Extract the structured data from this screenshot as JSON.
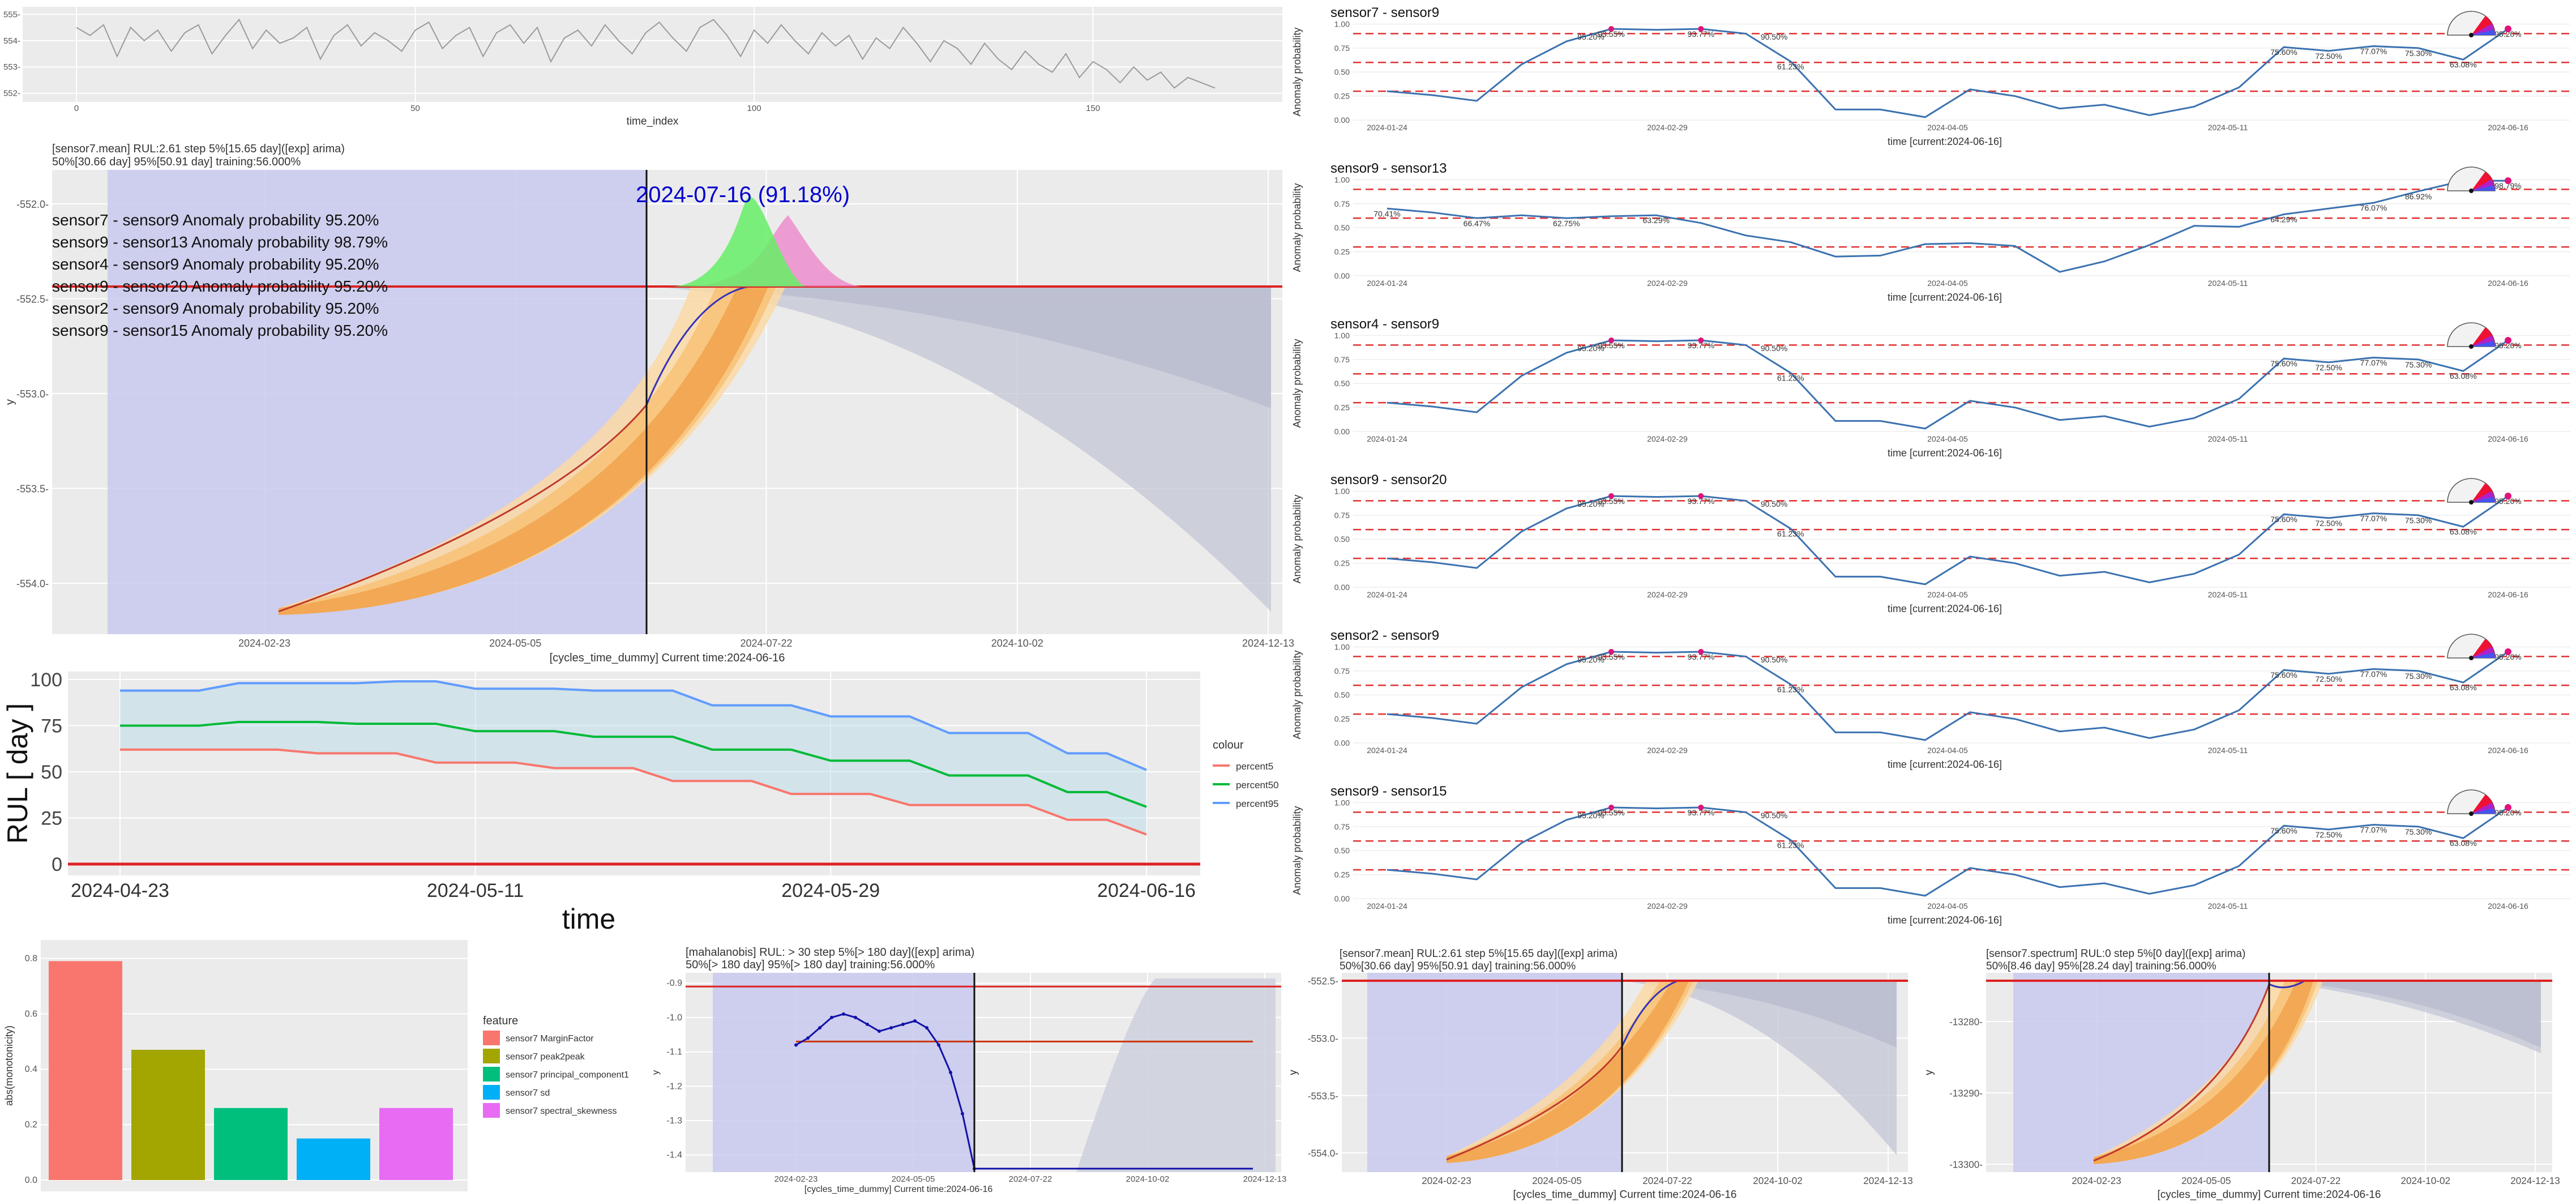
{
  "chart_data": [
    {
      "id": "raw",
      "type": "line",
      "xlabel": "time_index",
      "x_ticks": [
        "0",
        "50",
        "100",
        "150"
      ],
      "y_ticks": [
        "552-",
        "553-",
        "554-",
        "555-"
      ],
      "xlim": [
        0,
        170
      ],
      "ylim": [
        551.8,
        555.2
      ],
      "x": [
        0,
        2,
        4,
        6,
        8,
        10,
        12,
        14,
        16,
        18,
        20,
        22,
        24,
        26,
        28,
        30,
        32,
        34,
        36,
        38,
        40,
        42,
        44,
        46,
        48,
        50,
        52,
        54,
        56,
        58,
        60,
        62,
        64,
        66,
        68,
        70,
        72,
        74,
        76,
        78,
        80,
        82,
        84,
        86,
        88,
        90,
        92,
        94,
        96,
        98,
        100,
        102,
        104,
        106,
        108,
        110,
        112,
        114,
        116,
        118,
        120,
        122,
        124,
        126,
        128,
        130,
        132,
        134,
        136,
        138,
        140,
        142,
        144,
        146,
        148,
        150,
        152,
        154,
        156,
        158,
        160,
        162,
        164,
        166,
        168
      ],
      "values": [
        554.5,
        554.2,
        554.6,
        553.4,
        554.5,
        554.0,
        554.4,
        553.6,
        554.3,
        554.6,
        553.5,
        554.2,
        554.8,
        553.7,
        554.4,
        553.9,
        554.1,
        554.5,
        553.3,
        554.2,
        554.6,
        553.8,
        554.3,
        554.0,
        553.6,
        554.4,
        554.7,
        553.7,
        554.2,
        554.5,
        553.4,
        554.3,
        554.6,
        553.9,
        554.5,
        553.2,
        554.1,
        554.4,
        553.8,
        554.6,
        554.0,
        553.5,
        554.3,
        554.7,
        554.1,
        553.6,
        554.5,
        554.8,
        554.2,
        553.4,
        554.4,
        553.9,
        554.6,
        554.0,
        553.5,
        554.3,
        553.8,
        554.2,
        553.3,
        554.1,
        553.7,
        554.5,
        553.9,
        553.2,
        554.0,
        553.7,
        553.1,
        553.9,
        553.3,
        552.9,
        553.6,
        553.1,
        552.8,
        553.5,
        552.6,
        553.2,
        552.9,
        552.4,
        553.0,
        552.5,
        552.8,
        552.2,
        552.6,
        552.4,
        552.2
      ]
    },
    {
      "id": "main_forecast",
      "type": "line",
      "title_line1": "[sensor7.mean] RUL:2.61 step 5%[15.65 day]([exp] arima)",
      "title_line2": "50%[30.66 day] 95%[50.91 day] training:56.000%",
      "xlabel": "[cycles_time_dummy] Current time:2024-06-16",
      "ylabel": "y",
      "x_ticks": [
        "2024-02-23",
        "2024-05-05",
        "2024-07-22",
        "2024-10-02",
        "2024-12-13"
      ],
      "y_ticks": [
        "-552.0-",
        "-552.5-",
        "-553.0-",
        "-553.5-",
        "-554.0-"
      ],
      "ylim": [
        -554.3,
        -551.9
      ],
      "threshold": -552.51,
      "event_label": "2024-07-16 (91.18%)",
      "annotations": [
        "sensor7 - sensor9 Anomaly probability 95.20%",
        "sensor9 - sensor13 Anomaly probability 98.79%",
        "sensor4 - sensor9 Anomaly probability 95.20%",
        "sensor9 - sensor20 Anomaly probability 95.20%",
        "sensor2 - sensor9 Anomaly probability 95.20%",
        "sensor9 - sensor15 Anomaly probability 95.20%"
      ],
      "colors": {
        "accent": "#0000cc",
        "threshold": "#cc0000",
        "obs": "#cc3300",
        "fit": "#3333bb",
        "train_band": "#c8c8f0",
        "density_green": "#66ee66",
        "density_pink": "#ee88cc"
      }
    },
    {
      "id": "rul",
      "type": "line",
      "ylabel": "RUL [ day ]",
      "xlabel": "time",
      "x_ticks": [
        "2024-04-23",
        "2024-05-11",
        "2024-05-29",
        "2024-06-16"
      ],
      "y_ticks": [
        "0",
        "25",
        "50",
        "75",
        "100"
      ],
      "ylim": [
        0,
        100
      ],
      "legend_title": "colour",
      "series": [
        {
          "name": "percent5",
          "color": "#f8766d",
          "values": [
            62,
            62,
            62,
            62,
            62,
            60,
            60,
            60,
            55,
            55,
            55,
            52,
            52,
            52,
            45,
            45,
            45,
            38,
            38,
            38,
            32,
            32,
            32,
            32,
            24,
            24,
            16
          ]
        },
        {
          "name": "percent50",
          "color": "#00ba38",
          "values": [
            75,
            75,
            75,
            77,
            77,
            77,
            76,
            76,
            76,
            72,
            72,
            72,
            69,
            69,
            69,
            62,
            62,
            62,
            56,
            56,
            56,
            48,
            48,
            48,
            39,
            39,
            31
          ]
        },
        {
          "name": "percent95",
          "color": "#619cff",
          "values": [
            94,
            94,
            94,
            98,
            98,
            98,
            98,
            99,
            99,
            95,
            95,
            95,
            94,
            94,
            94,
            86,
            86,
            86,
            80,
            80,
            80,
            71,
            71,
            71,
            60,
            60,
            51
          ]
        }
      ]
    },
    {
      "id": "monotonicity",
      "type": "bar",
      "ylabel": "abs(monotonicity)",
      "y_ticks": [
        "0.0",
        "0.2",
        "0.4",
        "0.6",
        "0.8"
      ],
      "ylim": [
        0,
        0.85
      ],
      "legend_title": "feature",
      "categories": [
        "sensor7 MarginFactor",
        "sensor7 peak2peak",
        "sensor7 principal_component1",
        "sensor7 sd",
        "sensor7 spectral_skewness"
      ],
      "values": [
        0.79,
        0.47,
        0.26,
        0.15,
        0.26
      ],
      "colors": [
        "#f8766d",
        "#a3a500",
        "#00bf7d",
        "#00b0f6",
        "#e76bf3"
      ]
    },
    {
      "id": "anomaly_panels",
      "type": "line",
      "ylabel": "Anomaly probability",
      "xlabel": "time [current:2024-06-16]",
      "x_ticks": [
        "2024-01-24",
        "2024-02-29",
        "2024-04-05",
        "2024-05-11",
        "2024-06-16"
      ],
      "y_ticks": [
        "0.00",
        "0.25",
        "0.50",
        "0.75",
        "1.00"
      ],
      "ylim": [
        0,
        1.05
      ],
      "thresholds": [
        0.3,
        0.6,
        0.9
      ],
      "panels": [
        {
          "title": "sensor7 - sensor9",
          "values": [
            0.3,
            0.26,
            0.2,
            0.58,
            0.82,
            0.95,
            0.94,
            0.95,
            0.9,
            0.61,
            0.11,
            0.11,
            0.03,
            0.32,
            0.25,
            0.12,
            0.16,
            0.05,
            0.14,
            0.34,
            0.76,
            0.72,
            0.77,
            0.75,
            0.63,
            0.95
          ],
          "point_labels": [
            "",
            "",
            "",
            "",
            "",
            "93.55%",
            "",
            "93.77%",
            "",
            "61.23%",
            "",
            "",
            "",
            "",
            "",
            "",
            "",
            "",
            "",
            "",
            "75.60%",
            "72.50%",
            "77.07%",
            "75.30%",
            "63.08%",
            "95.20%"
          ],
          "extra_labels": [
            "95.20%",
            "",
            "",
            "",
            "",
            "",
            "",
            "",
            "90.50%",
            "",
            "",
            "",
            "",
            "",
            "",
            "",
            "",
            "",
            "",
            "",
            "",
            "",
            "",
            "",
            "",
            ""
          ]
        },
        {
          "title": "sensor9 - sensor13",
          "values": [
            0.7,
            0.66,
            0.6,
            0.63,
            0.6,
            0.62,
            0.63,
            0.55,
            0.42,
            0.35,
            0.2,
            0.21,
            0.33,
            0.34,
            0.31,
            0.04,
            0.15,
            0.32,
            0.52,
            0.51,
            0.64,
            0.7,
            0.76,
            0.88,
            0.99,
            0.99
          ],
          "point_labels": [
            "70.41%",
            "",
            "66.47%",
            "",
            "62.75%",
            "",
            "63.29%",
            "",
            "",
            "",
            "",
            "",
            "",
            "",
            "",
            "",
            "",
            "",
            "",
            "",
            "64.29%",
            "",
            "76.07%",
            "86.92%",
            "98.92%",
            "98.79%"
          ],
          "extra_labels": []
        },
        {
          "title": "sensor4 - sensor9",
          "values": [
            0.3,
            0.26,
            0.2,
            0.58,
            0.82,
            0.95,
            0.94,
            0.95,
            0.9,
            0.61,
            0.11,
            0.11,
            0.03,
            0.32,
            0.25,
            0.12,
            0.16,
            0.05,
            0.14,
            0.34,
            0.76,
            0.72,
            0.77,
            0.75,
            0.63,
            0.95
          ],
          "point_labels": [
            "",
            "",
            "",
            "",
            "",
            "93.55%",
            "",
            "93.77%",
            "",
            "61.23%",
            "",
            "",
            "",
            "",
            "",
            "",
            "",
            "",
            "",
            "",
            "75.60%",
            "72.50%",
            "77.07%",
            "75.30%",
            "63.08%",
            "95.20%"
          ],
          "extra_labels": [
            "95.20%",
            "",
            "",
            "",
            "",
            "",
            "",
            "",
            "90.50%",
            "",
            "",
            "",
            "",
            "",
            "",
            "",
            "",
            "",
            "",
            "",
            "",
            "",
            "",
            "",
            "",
            ""
          ]
        },
        {
          "title": "sensor9 - sensor20",
          "values": [
            0.3,
            0.26,
            0.2,
            0.58,
            0.82,
            0.95,
            0.94,
            0.95,
            0.9,
            0.61,
            0.11,
            0.11,
            0.03,
            0.32,
            0.25,
            0.12,
            0.16,
            0.05,
            0.14,
            0.34,
            0.76,
            0.72,
            0.77,
            0.75,
            0.63,
            0.95
          ],
          "point_labels": [
            "",
            "",
            "",
            "",
            "",
            "93.55%",
            "",
            "93.77%",
            "",
            "61.23%",
            "",
            "",
            "",
            "",
            "",
            "",
            "",
            "",
            "",
            "",
            "75.60%",
            "72.50%",
            "77.07%",
            "75.30%",
            "63.08%",
            "95.20%"
          ],
          "extra_labels": [
            "95.20%",
            "",
            "",
            "",
            "",
            "",
            "",
            "",
            "90.50%",
            "",
            "",
            "",
            "",
            "",
            "",
            "",
            "",
            "",
            "",
            "",
            "",
            "",
            "",
            "",
            "",
            ""
          ]
        },
        {
          "title": "sensor2 - sensor9",
          "values": [
            0.3,
            0.26,
            0.2,
            0.58,
            0.82,
            0.95,
            0.94,
            0.95,
            0.9,
            0.61,
            0.11,
            0.11,
            0.03,
            0.32,
            0.25,
            0.12,
            0.16,
            0.05,
            0.14,
            0.34,
            0.76,
            0.72,
            0.77,
            0.75,
            0.63,
            0.95
          ],
          "point_labels": [
            "",
            "",
            "",
            "",
            "",
            "93.55%",
            "",
            "93.77%",
            "",
            "61.23%",
            "",
            "",
            "",
            "",
            "",
            "",
            "",
            "",
            "",
            "",
            "75.60%",
            "72.50%",
            "77.07%",
            "75.30%",
            "63.08%",
            "95.20%"
          ],
          "extra_labels": [
            "95.20%",
            "",
            "",
            "",
            "",
            "",
            "",
            "",
            "90.50%",
            "",
            "",
            "",
            "",
            "",
            "",
            "",
            "",
            "",
            "",
            "",
            "",
            "",
            "",
            "",
            "",
            ""
          ]
        },
        {
          "title": "sensor9 - sensor15",
          "values": [
            0.3,
            0.26,
            0.2,
            0.58,
            0.82,
            0.95,
            0.94,
            0.95,
            0.9,
            0.61,
            0.11,
            0.11,
            0.03,
            0.32,
            0.25,
            0.12,
            0.16,
            0.05,
            0.14,
            0.34,
            0.76,
            0.72,
            0.77,
            0.75,
            0.63,
            0.95
          ],
          "point_labels": [
            "",
            "",
            "",
            "",
            "",
            "93.55%",
            "",
            "93.77%",
            "",
            "61.23%",
            "",
            "",
            "",
            "",
            "",
            "",
            "",
            "",
            "",
            "",
            "75.60%",
            "72.50%",
            "77.07%",
            "75.30%",
            "63.08%",
            "95.20%"
          ],
          "extra_labels": [
            "95.20%",
            "",
            "",
            "",
            "",
            "",
            "",
            "",
            "90.50%",
            "",
            "",
            "",
            "",
            "",
            "",
            "",
            "",
            "",
            "",
            "",
            "",
            "",
            "",
            "",
            "",
            ""
          ]
        }
      ]
    },
    {
      "id": "mahalanobis",
      "type": "line",
      "title_line1": "[mahalanobis] RUL: > 30 step 5%[> 180 day]([exp] arima)",
      "title_line2": "50%[> 180 day] 95%[> 180 day] training:56.000%",
      "xlabel": "[cycles_time_dummy] Current time:2024-06-16",
      "ylabel": "y",
      "x_ticks": [
        "2024-02-23",
        "2024-05-05",
        "2024-07-22",
        "2024-10-02",
        "2024-12-13"
      ],
      "y_ticks": [
        "-0.9",
        "-1.0",
        "-1.1",
        "-1.2",
        "-1.3",
        "-1.4"
      ],
      "ylim": [
        -1.45,
        -0.87
      ],
      "threshold": -0.91,
      "level": -1.07,
      "values": [
        -1.08,
        -1.06,
        -1.03,
        -1.0,
        -0.99,
        -1.0,
        -1.02,
        -1.04,
        -1.03,
        -1.02,
        -1.01,
        -1.03,
        -1.08,
        -1.16,
        -1.28,
        -1.44
      ]
    },
    {
      "id": "mean_small",
      "type": "line",
      "title_line1": "[sensor7.mean] RUL:2.61 step 5%[15.65 day]([exp] arima)",
      "title_line2": "50%[30.66 day] 95%[50.91 day] training:56.000%",
      "xlabel": "[cycles_time_dummy] Current time:2024-06-16",
      "ylabel": "y",
      "x_ticks": [
        "2024-02-23",
        "2024-05-05",
        "2024-07-22",
        "2024-10-02",
        "2024-12-13"
      ],
      "y_ticks": [
        "-552.5-",
        "-553.0-",
        "-553.5-",
        "-554.0-"
      ],
      "ylim": [
        -554.2,
        -552.4
      ],
      "threshold": -552.51
    },
    {
      "id": "spectrum",
      "type": "line",
      "title_line1": "[sensor7.spectrum] RUL:0 step 5%[0 day]([exp] arima)",
      "title_line2": "50%[8.46 day] 95%[28.24 day] training:56.000%",
      "xlabel": "[cycles_time_dummy] Current time:2024-06-16",
      "ylabel": "y",
      "x_ticks": [
        "2024-02-23",
        "2024-05-05",
        "2024-07-22",
        "2024-10-02",
        "2024-12-13"
      ],
      "y_ticks": [
        "-13280-",
        "-13290-",
        "-13300-"
      ],
      "ylim": [
        -13301,
        -13272
      ],
      "threshold": -13273.5
    }
  ]
}
